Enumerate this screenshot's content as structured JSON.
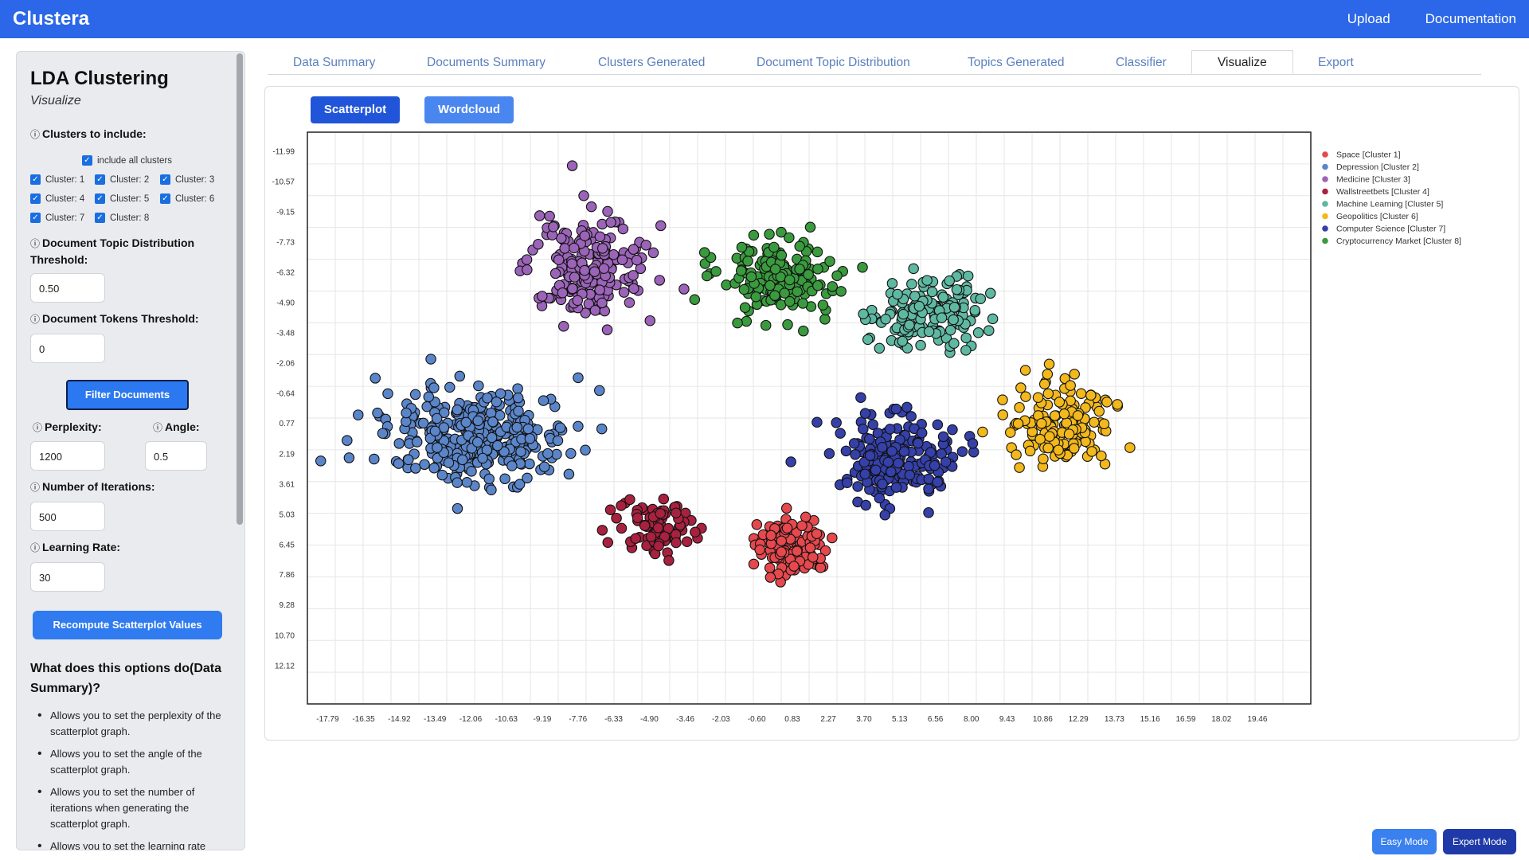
{
  "app": {
    "title": "Clustera",
    "nav": [
      "Upload",
      "Documentation"
    ]
  },
  "sidebar": {
    "title": "LDA Clustering",
    "subtitle": "Visualize",
    "clusters_label": "Clusters to include:",
    "include_all": "include all clusters",
    "clusters": [
      "Cluster: 1",
      "Cluster: 2",
      "Cluster: 3",
      "Cluster: 4",
      "Cluster: 5",
      "Cluster: 6",
      "Cluster: 7",
      "Cluster: 8"
    ],
    "dtd_label": "Document Topic Distribution Threshold:",
    "dtd_value": "0.50",
    "tokens_label": "Document Tokens Threshold:",
    "tokens_value": "0",
    "filter_button": "Filter Documents",
    "perplexity_label": "Perplexity:",
    "perplexity_value": "1200",
    "angle_label": "Angle:",
    "angle_value": "0.5",
    "iterations_label": "Number of Iterations:",
    "iterations_value": "500",
    "lr_label": "Learning Rate:",
    "lr_value": "30",
    "recompute_button": "Recompute Scatterplot Values",
    "help_title": "What does this options do(Data Summary)?",
    "help_items": [
      "Allows you to set the perplexity of the scatterplot graph.",
      "Allows you to set the angle of the scatterplot graph.",
      "Allows you to set the number of iterations when generating the scatterplot graph.",
      "Allows you to set the learning rate"
    ]
  },
  "tabs": [
    "Data Summary",
    "Documents Summary",
    "Clusters Generated",
    "Document Topic Distribution",
    "Topics Generated",
    "Classifier",
    "Visualize",
    "Export"
  ],
  "active_tab": "Visualize",
  "view_buttons": {
    "scatter": "Scatterplot",
    "word": "Wordcloud"
  },
  "modes": {
    "easy": "Easy Mode",
    "expert": "Expert Mode"
  },
  "chart_data": {
    "type": "scatter",
    "xticks": [
      "-17.79",
      "-16.35",
      "-14.92",
      "-13.49",
      "-12.06",
      "-10.63",
      "-9.19",
      "-7.76",
      "-6.33",
      "-4.90",
      "-3.46",
      "-2.03",
      "-0.60",
      "0.83",
      "2.27",
      "3.70",
      "5.13",
      "6.56",
      "8.00",
      "9.43",
      "10.86",
      "12.29",
      "13.73",
      "15.16",
      "16.59",
      "18.02",
      "19.46"
    ],
    "yticks": [
      "-11.99",
      "-10.57",
      "-9.15",
      "-7.73",
      "-6.32",
      "-4.90",
      "-3.48",
      "-2.06",
      "-0.64",
      "0.77",
      "2.19",
      "3.61",
      "5.03",
      "6.45",
      "7.86",
      "9.28",
      "10.70",
      "12.12"
    ],
    "xlim": [
      -18.6,
      21.6
    ],
    "ylim": [
      -12.9,
      13.9
    ],
    "grid": true,
    "legend_position": "right",
    "series": [
      {
        "name": "Space [Cluster 1]",
        "color": "#e5484d",
        "center": [
          0.83,
          6.5
        ],
        "spread": [
          1.0,
          0.9
        ],
        "n": 110
      },
      {
        "name": "Depression [Cluster 2]",
        "color": "#5b85c9",
        "center": [
          -11.8,
          1.3
        ],
        "spread": [
          2.4,
          1.4
        ],
        "n": 360
      },
      {
        "name": "Medicine [Cluster 3]",
        "color": "#9b64b8",
        "center": [
          -7.3,
          -6.5
        ],
        "spread": [
          1.6,
          1.6
        ],
        "n": 200
      },
      {
        "name": "Wallstreetbets [Cluster 4]",
        "color": "#a8213f",
        "center": [
          -4.6,
          5.6
        ],
        "spread": [
          1.0,
          0.9
        ],
        "n": 90
      },
      {
        "name": "Machine Learning [Cluster 5]",
        "color": "#5fb8a2",
        "center": [
          6.2,
          -4.5
        ],
        "spread": [
          1.5,
          1.2
        ],
        "n": 150
      },
      {
        "name": "Geopolitics [Cluster 6]",
        "color": "#f2b81c",
        "center": [
          11.6,
          0.8
        ],
        "spread": [
          1.4,
          1.2
        ],
        "n": 150
      },
      {
        "name": "Computer Science [Cluster 7]",
        "color": "#3540a8",
        "center": [
          5.0,
          2.4
        ],
        "spread": [
          1.5,
          1.3
        ],
        "n": 200
      },
      {
        "name": "Cryptocurrency Market [Cluster 8]",
        "color": "#3a9a3e",
        "center": [
          0.3,
          -6.2
        ],
        "spread": [
          1.5,
          1.2
        ],
        "n": 160
      }
    ]
  }
}
